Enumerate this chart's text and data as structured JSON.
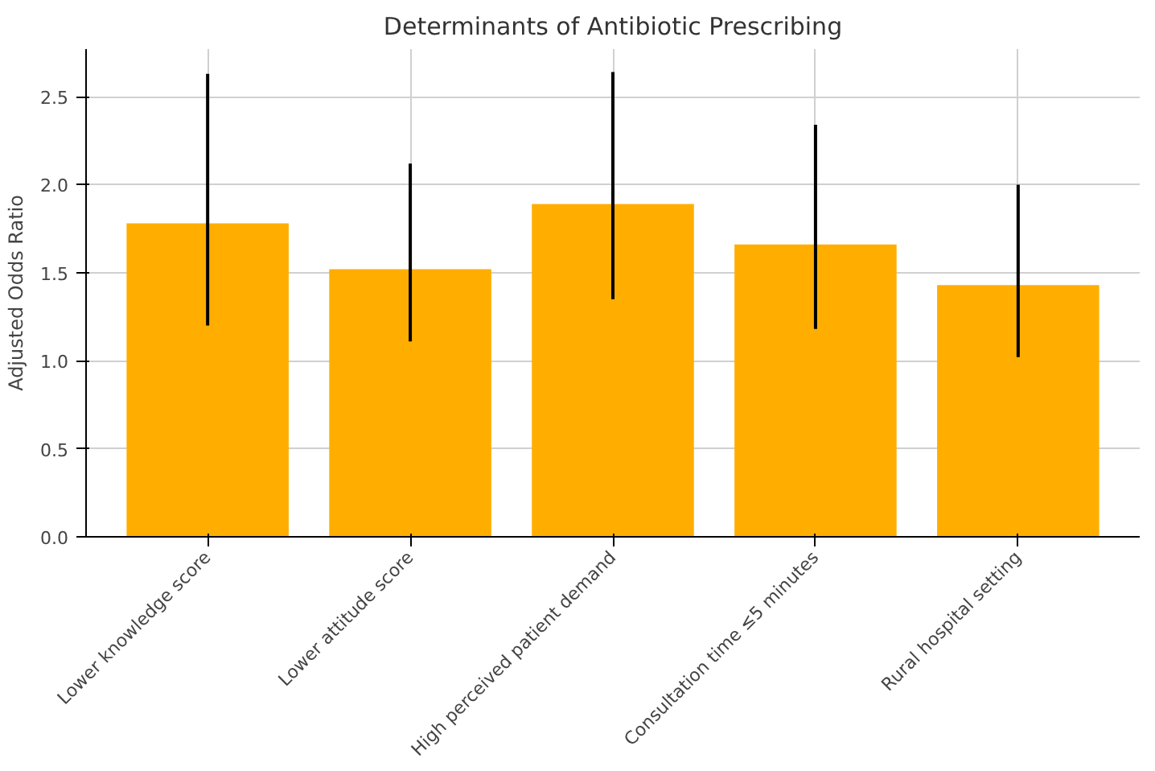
{
  "chart_data": {
    "type": "bar",
    "title": "Determinants of Antibiotic Prescribing",
    "ylabel": "Adjusted Odds Ratio",
    "categories": [
      "Lower knowledge score",
      "Lower attitude score",
      "High perceived patient demand",
      "Consultation time ≤5 minutes",
      "Rural hospital setting"
    ],
    "values": [
      1.78,
      1.52,
      1.89,
      1.66,
      1.43
    ],
    "errors": [
      [
        1.2,
        2.63
      ],
      [
        1.11,
        2.12
      ],
      [
        1.35,
        2.64
      ],
      [
        1.18,
        2.34
      ],
      [
        1.02,
        2.0
      ]
    ],
    "color": "#ffae00",
    "ylim": [
      0,
      2.77
    ],
    "yticks": [
      {
        "value": 0,
        "label": "0.0"
      },
      {
        "value": 0.5,
        "label": "0.5"
      },
      {
        "value": 1,
        "label": "1.0"
      },
      {
        "value": 1.5,
        "label": "1.5"
      },
      {
        "value": 2,
        "label": "2.0"
      },
      {
        "value": 2.5,
        "label": "2.5"
      }
    ],
    "grid": true
  }
}
